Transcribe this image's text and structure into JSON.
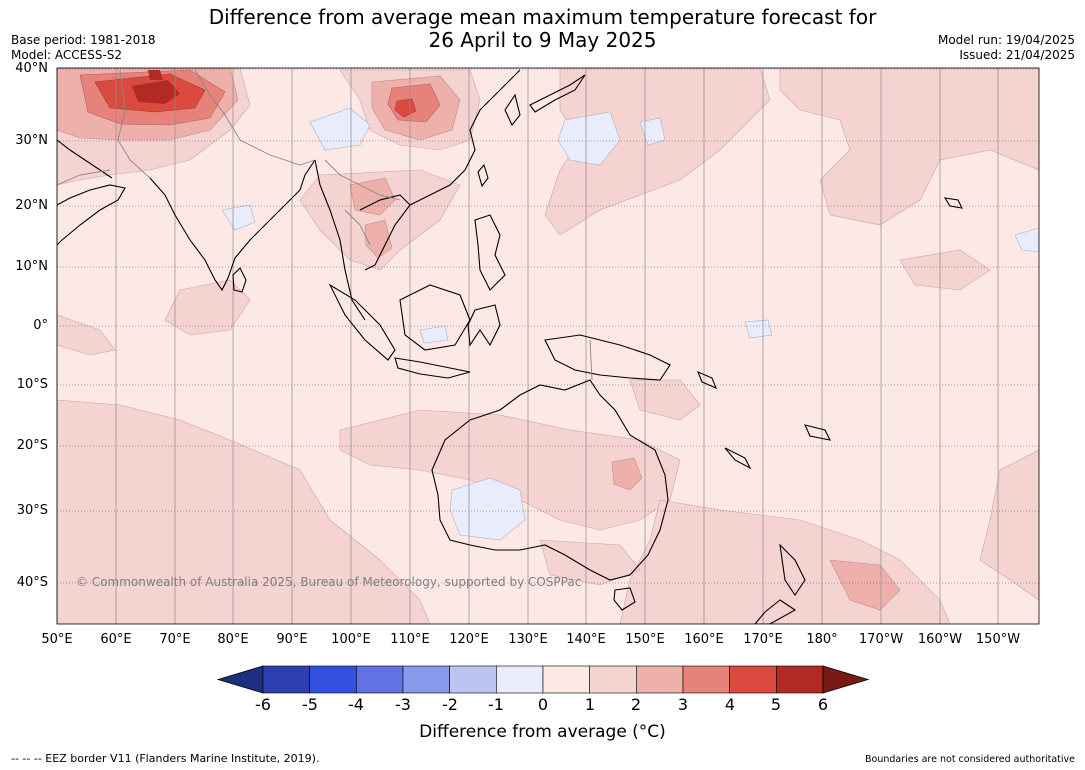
{
  "header": {
    "title_line1": "Difference from average mean maximum temperature forecast for",
    "title_line2": "26 April to 9 May 2025",
    "base_period": "Base period: 1981-2018",
    "model": "Model: ACCESS-S2",
    "model_run": "Model run: 19/04/2025",
    "issued": "Issued: 21/04/2025"
  },
  "map": {
    "region": "Indo-Pacific",
    "lat_labels": [
      "40°N",
      "30°N",
      "20°N",
      "10°N",
      "0°",
      "10°S",
      "20°S",
      "30°S",
      "40°S"
    ],
    "lon_labels": [
      "50°E",
      "60°E",
      "70°E",
      "80°E",
      "90°E",
      "100°E",
      "110°E",
      "120°E",
      "130°E",
      "140°E",
      "150°E",
      "160°E",
      "170°E",
      "180°",
      "170°W",
      "160°W",
      "150°W"
    ],
    "copyright": "© Commonwealth of Australia 2025, Bureau of Meteorology, supported by COSPPac"
  },
  "colorbar": {
    "title": "Difference from average (°C)",
    "ticks": [
      "-6",
      "-5",
      "-4",
      "-3",
      "-2",
      "-1",
      "0",
      "1",
      "2",
      "3",
      "4",
      "5",
      "6"
    ],
    "colors": [
      "#1f2f7f",
      "#2b3fb0",
      "#3250e0",
      "#6072e5",
      "#8898ea",
      "#bcc5f2",
      "#e8ecfb",
      "#fce9e6",
      "#f5d3d0",
      "#eeb0aa",
      "#e6827a",
      "#db4a3e",
      "#b12b24",
      "#7a1a15"
    ]
  },
  "footer": {
    "eez_legend": "--  --  -- EEZ border V11 (Flanders Marine Institute, 2019).",
    "disclaimer": "Boundaries are not considered authoritative"
  }
}
